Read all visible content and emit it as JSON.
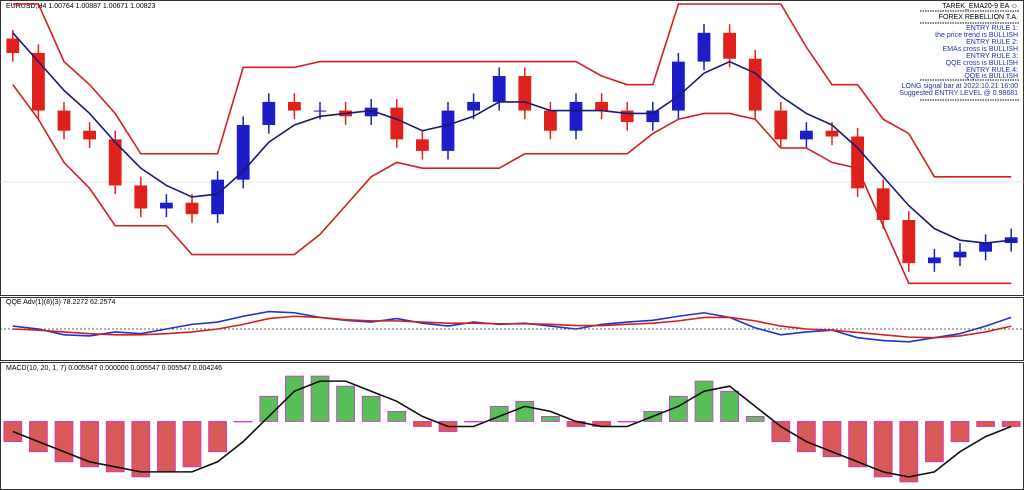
{
  "panel": {
    "title": "TAREK_EMA20-9 EA ☺",
    "lines": [
      "FOREX REBELLION T.A.",
      "ENTRY RULE 1:",
      "the price trend is BULLISH",
      "ENTRY RULE 2:",
      "EMAs cross is BULLISH",
      "ENTRY RULE 3:",
      "QQE cross is BULLISH",
      "ENTRY RULE 4:",
      "QQE is BULLISH",
      "LONG signal bar at 2022.10.21 16:00",
      "Suggested ENTRY LEVEL @ 0.98681"
    ]
  },
  "chart_data": [
    {
      "type": "candlestick",
      "title": "EURUSD,H4 1.00764 1.00887 1.00671 1.00823",
      "ylim": [
        0,
        100
      ],
      "up_color": "#1c1cc8",
      "down_color": "#e0201c",
      "open": [
        88,
        83,
        63,
        56,
        53,
        37,
        29,
        31,
        27,
        39,
        58,
        66,
        63,
        63,
        61,
        64,
        53,
        49,
        63,
        66,
        75,
        63,
        56,
        66,
        63,
        59,
        63,
        80,
        90,
        81,
        63,
        53,
        56,
        54,
        36,
        25,
        10,
        12,
        14,
        17
      ],
      "high": [
        91,
        86,
        66,
        59,
        56,
        40,
        34,
        34,
        42,
        61,
        69,
        69,
        66,
        66,
        67,
        67,
        56,
        66,
        69,
        78,
        78,
        66,
        69,
        69,
        66,
        66,
        83,
        93,
        93,
        84,
        66,
        59,
        59,
        57,
        39,
        28,
        15,
        17,
        20,
        22
      ],
      "low": [
        80,
        60,
        53,
        50,
        34,
        26,
        26,
        24,
        24,
        36,
        55,
        60,
        60,
        58,
        58,
        50,
        46,
        46,
        60,
        63,
        60,
        53,
        53,
        60,
        56,
        56,
        60,
        77,
        78,
        60,
        50,
        50,
        51,
        33,
        22,
        7,
        7,
        9,
        11,
        14
      ],
      "close": [
        83,
        63,
        56,
        53,
        37,
        29,
        31,
        27,
        39,
        58,
        66,
        63,
        63,
        61,
        64,
        53,
        49,
        63,
        66,
        75,
        63,
        56,
        66,
        63,
        59,
        63,
        80,
        90,
        81,
        63,
        53,
        56,
        54,
        36,
        25,
        10,
        12,
        14,
        17,
        19
      ],
      "series": [
        {
          "color": "#1a1a6e",
          "values": [
            90,
            80,
            70,
            62,
            52,
            43,
            37,
            33,
            34,
            42,
            52,
            58,
            61,
            62,
            63,
            60,
            56,
            58,
            61,
            66,
            66,
            63,
            63,
            63,
            62,
            62,
            68,
            76,
            80,
            76,
            68,
            62,
            58,
            50,
            40,
            30,
            22,
            18,
            17,
            18
          ]
        },
        {
          "color": "#d02020",
          "values": [
            100,
            100,
            80,
            72,
            62,
            48,
            48,
            48,
            48,
            78,
            78,
            78,
            80,
            80,
            80,
            80,
            80,
            80,
            80,
            80,
            80,
            80,
            80,
            75,
            72,
            72,
            100,
            100,
            100,
            100,
            100,
            85,
            72,
            72,
            60,
            55,
            40,
            40,
            40,
            40
          ]
        },
        {
          "color": "#d02020",
          "values": [
            72,
            60,
            45,
            36,
            23,
            23,
            23,
            13,
            13,
            13,
            13,
            13,
            20,
            30,
            40,
            45,
            43,
            43,
            43,
            43,
            48,
            48,
            48,
            48,
            48,
            55,
            60,
            62,
            62,
            60,
            50,
            50,
            45,
            43,
            23,
            3,
            3,
            3,
            3,
            3
          ]
        }
      ]
    },
    {
      "type": "line",
      "title": "QQE Adv(1)(8)(3) 78.2272 62.2574",
      "ylim": [
        0,
        100
      ],
      "level": 50,
      "series": [
        {
          "color": "#2233cc",
          "values": [
            55,
            50,
            40,
            38,
            45,
            42,
            50,
            58,
            62,
            72,
            80,
            78,
            70,
            65,
            62,
            68,
            60,
            55,
            62,
            58,
            60,
            55,
            50,
            58,
            62,
            65,
            72,
            78,
            70,
            52,
            40,
            45,
            48,
            35,
            30,
            28,
            35,
            42,
            55,
            70
          ]
        },
        {
          "color": "#cc2222",
          "values": [
            50,
            48,
            45,
            42,
            40,
            40,
            42,
            45,
            50,
            58,
            68,
            72,
            70,
            66,
            64,
            64,
            62,
            60,
            60,
            59,
            59,
            58,
            56,
            56,
            58,
            60,
            64,
            70,
            70,
            64,
            55,
            50,
            48,
            44,
            40,
            36,
            35,
            38,
            45,
            55
          ]
        }
      ]
    },
    {
      "type": "macd",
      "title": "MACD(10, 20, 1, 7) 0.005547 0.000000 0.005547 0.005547 0.004246",
      "ylim": [
        -0.013,
        0.011
      ],
      "up_color": "#22aa22",
      "down_color": "#cc2222",
      "outline_color": "#d030d0",
      "values": [
        -0.004,
        -0.006,
        -0.008,
        -0.009,
        -0.01,
        -0.011,
        -0.01,
        -0.009,
        -0.006,
        0.0,
        0.005,
        0.009,
        0.009,
        0.007,
        0.005,
        0.002,
        -0.001,
        -0.002,
        0.0,
        0.003,
        0.004,
        0.001,
        -0.001,
        -0.001,
        0.0,
        0.002,
        0.005,
        0.008,
        0.006,
        0.001,
        -0.004,
        -0.006,
        -0.007,
        -0.009,
        -0.011,
        -0.012,
        -0.008,
        -0.004,
        -0.001,
        -0.001
      ],
      "series": [
        {
          "color": "#111111",
          "values": [
            -0.002,
            -0.004,
            -0.006,
            -0.008,
            -0.009,
            -0.01,
            -0.01,
            -0.01,
            -0.008,
            -0.004,
            0.001,
            0.006,
            0.008,
            0.008,
            0.006,
            0.004,
            0.001,
            -0.001,
            -0.001,
            0.001,
            0.003,
            0.002,
            0.0,
            -0.001,
            -0.001,
            0.001,
            0.003,
            0.006,
            0.007,
            0.003,
            -0.001,
            -0.004,
            -0.006,
            -0.008,
            -0.01,
            -0.011,
            -0.01,
            -0.006,
            -0.003,
            -0.001
          ]
        }
      ]
    }
  ]
}
